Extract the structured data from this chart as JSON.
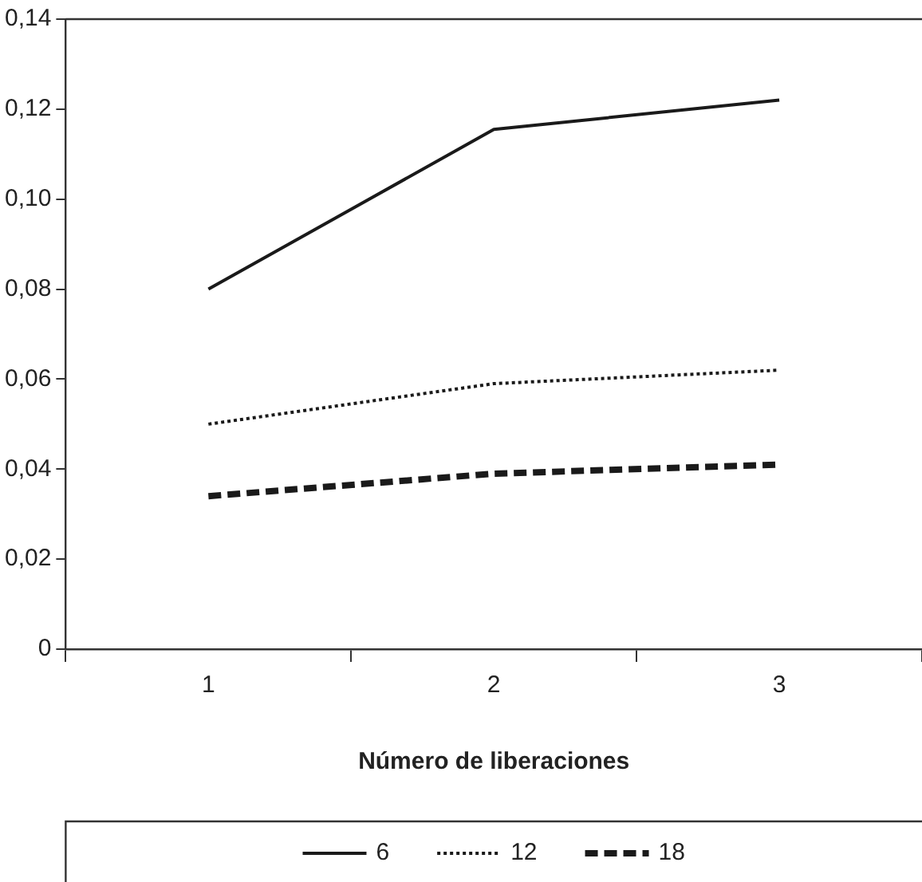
{
  "chart_data": {
    "type": "line",
    "xlabel": "Número de liberaciones",
    "categories": [
      "1",
      "2",
      "3"
    ],
    "series": [
      {
        "name": "6",
        "color": "#1a1a1a",
        "line_style": "solid",
        "values": [
          0.08,
          0.1155,
          0.122
        ]
      },
      {
        "name": "12",
        "color": "#1a1a1a",
        "line_style": "dotted",
        "values": [
          0.05,
          0.059,
          0.062
        ]
      },
      {
        "name": "18",
        "color": "#1a1a1a",
        "line_style": "dashed",
        "values": [
          0.034,
          0.039,
          0.041
        ]
      }
    ],
    "ylim": [
      0,
      0.14
    ],
    "yticks": [
      {
        "value": 0,
        "label": "0"
      },
      {
        "value": 0.02,
        "label": "0,02"
      },
      {
        "value": 0.04,
        "label": "0,04"
      },
      {
        "value": 0.06,
        "label": "0,06"
      },
      {
        "value": 0.08,
        "label": "0,08"
      },
      {
        "value": 0.1,
        "label": "0,10"
      },
      {
        "value": 0.12,
        "label": "0,12"
      },
      {
        "value": 0.14,
        "label": "0,14"
      }
    ],
    "grid": false,
    "legend": "bottom",
    "marker": "none"
  }
}
